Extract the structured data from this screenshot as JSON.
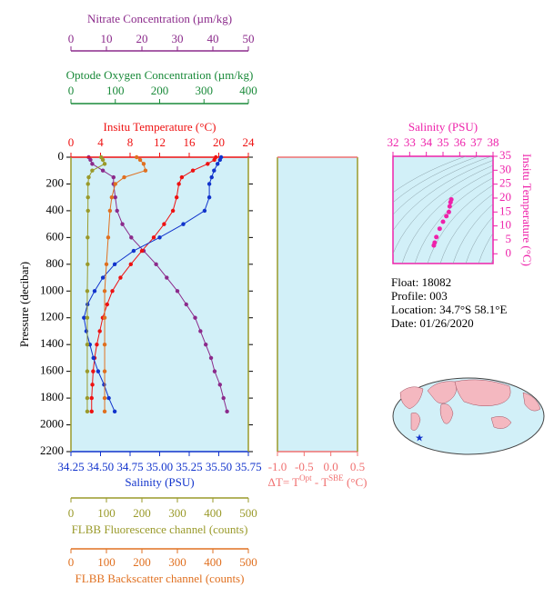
{
  "chart_data": [
    {
      "type": "profile",
      "ylabel": "Pressure (decibar)",
      "ylim": [
        2200,
        0
      ],
      "yticks": [
        0,
        200,
        400,
        600,
        800,
        1000,
        1200,
        1400,
        1600,
        1800,
        2000,
        2200
      ],
      "background": "#d2f0f8",
      "top_axes": [
        {
          "label": "Nitrate Concentration (µm/kg)",
          "color": "#8b2a8b",
          "xlim": [
            0,
            50
          ],
          "xticks": [
            0,
            10,
            20,
            30,
            40,
            50
          ],
          "pressure": [
            0,
            20,
            50,
            100,
            150,
            200,
            300,
            400,
            500,
            600,
            700,
            800,
            900,
            1000,
            1100,
            1200,
            1300,
            1400,
            1500,
            1600,
            1700,
            1800,
            1900
          ],
          "values": [
            5,
            5.5,
            6,
            9,
            12,
            12,
            12.5,
            13,
            14.5,
            17,
            20.5,
            24,
            27,
            30,
            32.5,
            35,
            36.5,
            38,
            39.5,
            40.5,
            42,
            43,
            44
          ]
        },
        {
          "label": "Optode Oxygen Concentration (µm/kg)",
          "color": "#1a8a3a",
          "xlim": [
            0,
            400
          ],
          "xticks": [
            0,
            100,
            200,
            300,
            400
          ],
          "pressure": [],
          "values": []
        },
        {
          "label": "Insitu Temperature (°C)",
          "color": "#ee1111",
          "xlim": [
            0,
            24
          ],
          "xticks": [
            0,
            4,
            8,
            12,
            16,
            20,
            24
          ],
          "pressure": [
            0,
            20,
            50,
            100,
            150,
            200,
            300,
            400,
            500,
            600,
            700,
            800,
            900,
            1000,
            1100,
            1200,
            1300,
            1400,
            1500,
            1600,
            1700,
            1800,
            1900
          ],
          "values": [
            19.6,
            19.4,
            18.5,
            16.5,
            15.0,
            14.6,
            14.3,
            13.8,
            12.6,
            11.2,
            9.6,
            8.1,
            6.7,
            5.6,
            4.9,
            4.3,
            3.9,
            3.5,
            3.2,
            3.0,
            2.9,
            2.8,
            2.8
          ]
        }
      ],
      "bottom_axes": [
        {
          "label": "Salinity (PSU)",
          "color": "#1133cc",
          "xlim": [
            34.25,
            35.75
          ],
          "xticks": [
            34.25,
            {
              "value": 34.5,
              "label": "34.50"
            },
            34.75,
            {
              "value": 35,
              "label": "35.00"
            },
            35.25,
            {
              "value": 35.5,
              "label": "35.50"
            },
            35.75
          ],
          "pressure": [
            0,
            20,
            50,
            100,
            150,
            200,
            300,
            400,
            500,
            600,
            700,
            800,
            900,
            1000,
            1100,
            1200,
            1300,
            1400,
            1500,
            1600,
            1700,
            1800,
            1900
          ],
          "values": [
            35.52,
            35.51,
            35.49,
            35.46,
            35.44,
            35.42,
            35.42,
            35.38,
            35.2,
            35.0,
            34.78,
            34.62,
            34.52,
            34.45,
            34.39,
            34.36,
            34.38,
            34.41,
            34.44,
            34.48,
            34.53,
            34.57,
            34.62
          ]
        },
        {
          "label": "FLBB Fluorescence channel (counts)",
          "color": "#9a9a2a",
          "xlim": [
            0,
            500
          ],
          "xticks": [
            0,
            100,
            200,
            300,
            400,
            500
          ],
          "pressure": [
            0,
            20,
            50,
            100,
            150,
            200,
            300,
            400,
            600,
            800,
            1000,
            1200,
            1400,
            1600,
            1800,
            1900
          ],
          "values": [
            85,
            90,
            95,
            60,
            50,
            48,
            48,
            48,
            47,
            47,
            46,
            46,
            46,
            46,
            46,
            46
          ]
        },
        {
          "label": "FLBB Backscatter channel (counts)",
          "color": "#e07020",
          "xlim": [
            0,
            500
          ],
          "xticks": [
            0,
            100,
            200,
            300,
            400,
            500
          ],
          "pressure": [
            0,
            20,
            50,
            100,
            150,
            200,
            300,
            400,
            600,
            800,
            1000,
            1200,
            1400,
            1600,
            1800,
            1900
          ],
          "values": [
            185,
            195,
            205,
            210,
            150,
            125,
            115,
            110,
            105,
            100,
            95,
            95,
            95,
            95,
            95,
            95
          ]
        }
      ]
    },
    {
      "type": "profile",
      "ylim": [
        2200,
        0
      ],
      "background": "#d2f0f8",
      "top_axes": [],
      "bottom_axes": [
        {
          "label_parts": [
            "ΔT= T",
            "Opt",
            " - T",
            "SBE",
            " (°C)"
          ],
          "color": "#f07070",
          "xlim": [
            -1,
            0.5
          ],
          "xticks": [
            {
              "value": -1,
              "label": "-1.0"
            },
            {
              "value": -0.5,
              "label": "-0.5"
            },
            {
              "value": 0,
              "label": "0.0"
            },
            0.5
          ],
          "pressure": [],
          "values": []
        }
      ]
    },
    {
      "type": "scatter",
      "color": "#ee22aa",
      "xlabel": "Salinity (PSU)",
      "ylabel": "Insitu Temperature (°C)",
      "xlim": [
        32,
        38
      ],
      "xticks": [
        32,
        33,
        34,
        35,
        36,
        37,
        38
      ],
      "ylim": [
        -3.5,
        35
      ],
      "yticks": [
        0,
        5,
        10,
        15,
        20,
        25,
        30,
        35
      ],
      "x": [
        34.45,
        34.5,
        34.6,
        34.8,
        35.0,
        35.2,
        35.35,
        35.4,
        35.45,
        35.5
      ],
      "values": [
        3,
        4,
        6,
        9,
        11.5,
        13.5,
        15,
        17,
        18.5,
        19.5
      ]
    }
  ],
  "info": {
    "float": "Float:  18082",
    "profile": "Profile:  003",
    "location": "Location:  34.7°S  58.1°E",
    "date": "Date:  01/26/2020"
  }
}
